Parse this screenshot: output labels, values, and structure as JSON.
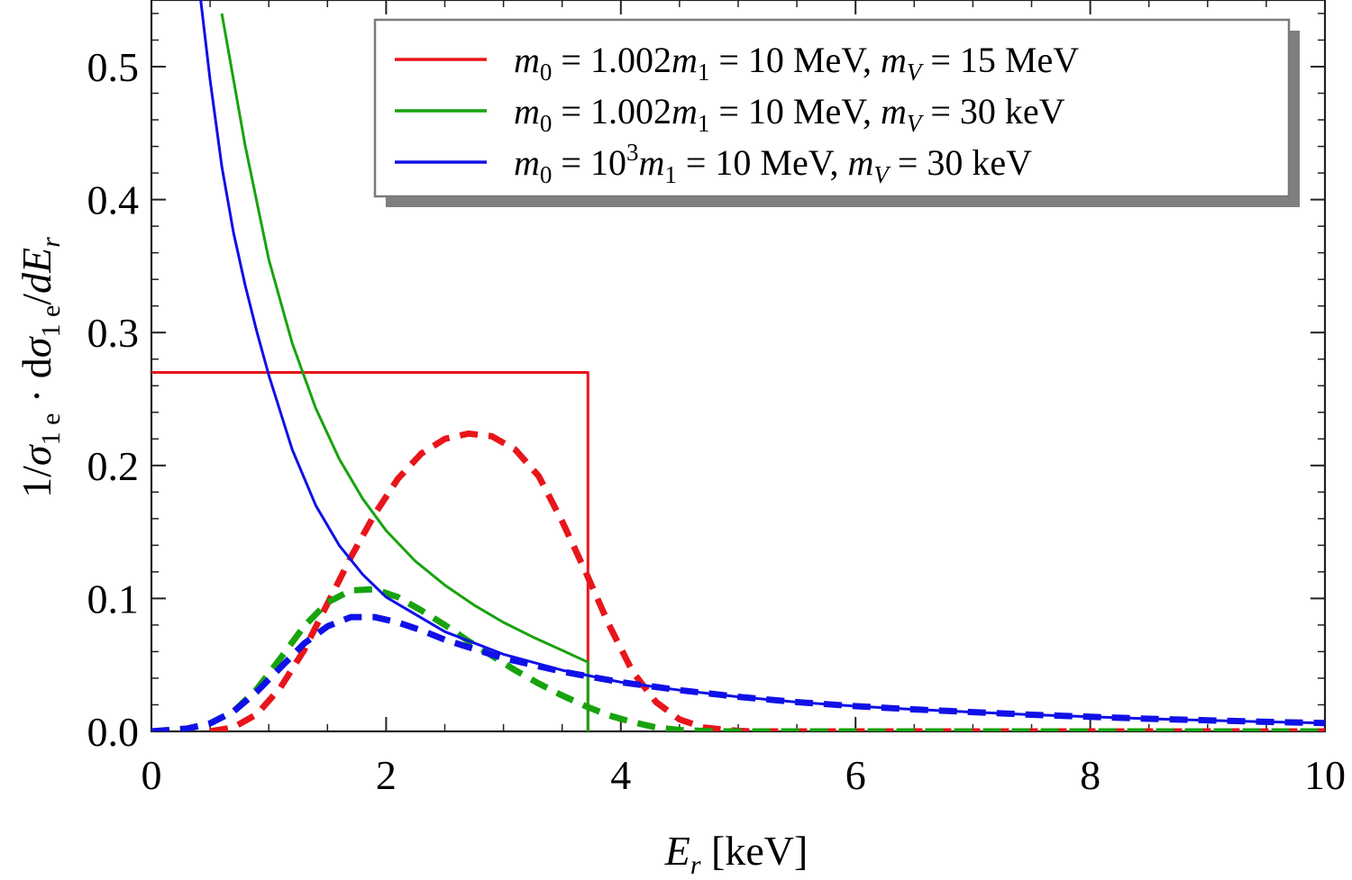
{
  "chart_data": {
    "type": "line",
    "title": "",
    "xlabel": {
      "var": "E",
      "sub": "r",
      "unit": " [keV]"
    },
    "ylabel": {
      "pre": "1/",
      "sigma": "σ",
      "sub1": "1 e",
      "mid": " · d",
      "sigma2": "σ",
      "sub2": "1 e",
      "slash": "/",
      "d": "d",
      "E": "E",
      "sub3": "r"
    },
    "xlim": [
      0,
      10
    ],
    "ylim": [
      0,
      0.55
    ],
    "x_ticks": [
      0,
      2,
      4,
      6,
      8,
      10
    ],
    "x_tick_labels": [
      "0",
      "2",
      "4",
      "6",
      "8",
      "10"
    ],
    "y_ticks": [
      0.0,
      0.1,
      0.2,
      0.3,
      0.4,
      0.5
    ],
    "y_tick_labels": [
      "0.0",
      "0.1",
      "0.2",
      "0.3",
      "0.4",
      "0.5"
    ],
    "grid": false,
    "legend_position": "top-right",
    "legend": [
      {
        "color": "#e8151b",
        "parts": [
          [
            "m",
            "it"
          ],
          [
            "0",
            "sub"
          ],
          [
            " = 1.002",
            ""
          ],
          [
            "m",
            "it"
          ],
          [
            "1",
            "sub"
          ],
          [
            " = 10 MeV, ",
            ""
          ],
          [
            "m",
            "it"
          ],
          [
            "V",
            "subit"
          ],
          [
            " = 15 MeV",
            ""
          ]
        ]
      },
      {
        "color": "#17a30e",
        "parts": [
          [
            "m",
            "it"
          ],
          [
            "0",
            "sub"
          ],
          [
            " = 1.002",
            ""
          ],
          [
            "m",
            "it"
          ],
          [
            "1",
            "sub"
          ],
          [
            " = 10 MeV, ",
            ""
          ],
          [
            "m",
            "it"
          ],
          [
            "V",
            "subit"
          ],
          [
            " = 30 keV",
            ""
          ]
        ]
      },
      {
        "color": "#1010e8",
        "parts": [
          [
            "m",
            "it"
          ],
          [
            "0",
            "sub"
          ],
          [
            " = 10",
            ""
          ],
          [
            "3",
            "sup"
          ],
          [
            "m",
            "it"
          ],
          [
            "1",
            "sub"
          ],
          [
            " = 10 MeV, ",
            ""
          ],
          [
            "m",
            "it"
          ],
          [
            "V",
            "subit"
          ],
          [
            " = 30 keV",
            ""
          ]
        ]
      }
    ],
    "series": [
      {
        "name": "red solid",
        "color": "#e8151b",
        "style": "solid",
        "x": [
          0,
          3.72,
          3.72
        ],
        "y": [
          0.27,
          0.27,
          0.0
        ]
      },
      {
        "name": "green solid",
        "color": "#17a30e",
        "style": "solid",
        "x": [
          0.6,
          0.8,
          1.0,
          1.2,
          1.4,
          1.6,
          1.8,
          2.0,
          2.25,
          2.5,
          2.75,
          3.0,
          3.25,
          3.5,
          3.72,
          3.72
        ],
        "y": [
          0.54,
          0.44,
          0.355,
          0.292,
          0.243,
          0.205,
          0.175,
          0.151,
          0.128,
          0.11,
          0.095,
          0.082,
          0.071,
          0.061,
          0.052,
          0.0
        ]
      },
      {
        "name": "blue solid",
        "color": "#1010e8",
        "style": "solid",
        "x": [
          0.42,
          0.5,
          0.6,
          0.7,
          0.8,
          0.9,
          1.0,
          1.2,
          1.4,
          1.6,
          1.8,
          2.0,
          2.5,
          3.0,
          3.5,
          4.0,
          4.5,
          5.0,
          5.5,
          6.0,
          6.5,
          7.0,
          7.5,
          8.0,
          8.5,
          9.0,
          9.5,
          10.0
        ],
        "y": [
          0.55,
          0.49,
          0.425,
          0.375,
          0.335,
          0.3,
          0.268,
          0.212,
          0.17,
          0.14,
          0.118,
          0.101,
          0.075,
          0.058,
          0.046,
          0.037,
          0.031,
          0.026,
          0.022,
          0.019,
          0.0165,
          0.0145,
          0.0125,
          0.011,
          0.0095,
          0.0083,
          0.0072,
          0.0062
        ]
      },
      {
        "name": "red dashed",
        "color": "#e8151b",
        "style": "dashed",
        "x": [
          0.5,
          0.7,
          0.9,
          1.1,
          1.3,
          1.5,
          1.7,
          1.9,
          2.1,
          2.3,
          2.5,
          2.7,
          2.9,
          3.1,
          3.3,
          3.5,
          3.7,
          3.9,
          4.1,
          4.3,
          4.5,
          4.7,
          4.9,
          5.1,
          5.4,
          6,
          7,
          8,
          9,
          10
        ],
        "y": [
          0.0,
          0.003,
          0.013,
          0.033,
          0.061,
          0.096,
          0.131,
          0.163,
          0.19,
          0.209,
          0.22,
          0.224,
          0.222,
          0.212,
          0.192,
          0.158,
          0.12,
          0.08,
          0.045,
          0.022,
          0.009,
          0.003,
          0.001,
          0.0,
          0.0,
          0.0,
          0.0,
          0.0,
          0.0,
          0.0
        ]
      },
      {
        "name": "green dashed",
        "color": "#17a30e",
        "style": "dashed",
        "x": [
          0.0,
          0.3,
          0.5,
          0.7,
          0.9,
          1.1,
          1.3,
          1.5,
          1.7,
          1.9,
          2.1,
          2.3,
          2.5,
          2.7,
          2.9,
          3.1,
          3.3,
          3.5,
          3.7,
          3.9,
          4.1,
          4.3,
          4.5,
          4.8,
          5.2,
          6,
          7,
          8,
          9,
          10
        ],
        "y": [
          0.0,
          0.002,
          0.006,
          0.015,
          0.032,
          0.055,
          0.079,
          0.097,
          0.106,
          0.107,
          0.101,
          0.091,
          0.08,
          0.068,
          0.057,
          0.046,
          0.036,
          0.027,
          0.019,
          0.012,
          0.007,
          0.003,
          0.001,
          0.0,
          0.0,
          0.0,
          0.0,
          0.0,
          0.0,
          0.0
        ]
      },
      {
        "name": "blue dashed",
        "color": "#1010e8",
        "style": "dashed",
        "x": [
          0.0,
          0.3,
          0.5,
          0.7,
          0.9,
          1.1,
          1.3,
          1.5,
          1.7,
          1.9,
          2.1,
          2.3,
          2.5,
          3.0,
          3.5,
          4.0,
          4.5,
          5.0,
          5.5,
          6.0,
          6.5,
          7.0,
          7.5,
          8.0,
          8.5,
          9.0,
          9.5,
          10.0
        ],
        "y": [
          0.0,
          0.002,
          0.006,
          0.015,
          0.03,
          0.048,
          0.066,
          0.079,
          0.086,
          0.086,
          0.082,
          0.076,
          0.069,
          0.055,
          0.045,
          0.037,
          0.031,
          0.026,
          0.022,
          0.019,
          0.0165,
          0.0145,
          0.0125,
          0.011,
          0.0095,
          0.0083,
          0.0072,
          0.0062
        ]
      }
    ]
  }
}
